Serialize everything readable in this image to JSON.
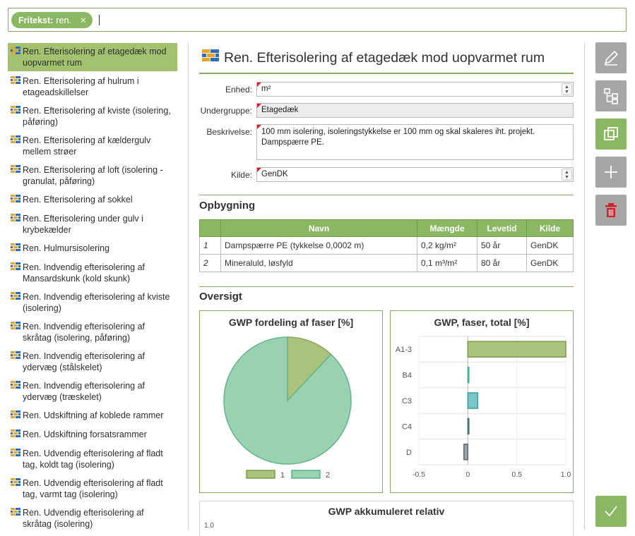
{
  "search": {
    "chip_label": "Fritekst:",
    "chip_value": "ren."
  },
  "list": {
    "items": [
      {
        "label": "Ren. Efterisolering af etagedæk mod uopvarmet rum",
        "selected": true
      },
      {
        "label": "Ren. Efterisolering af hulrum i etageadskillelser"
      },
      {
        "label": "Ren. Efterisolering af kviste (isolering, påføring)"
      },
      {
        "label": "Ren. Efterisolering af kældergulv mellem strøer"
      },
      {
        "label": "Ren. Efterisolering af loft (isolering - granulat, påføring)"
      },
      {
        "label": "Ren. Efterisolering af sokkel"
      },
      {
        "label": "Ren. Efterisolering under gulv i krybekælder"
      },
      {
        "label": "Ren. Hulmursisolering"
      },
      {
        "label": "Ren. Indvendig efterisolering af Mansardskunk  (kold skunk)"
      },
      {
        "label": "Ren. Indvendig efterisolering af kviste (isolering)"
      },
      {
        "label": "Ren. Indvendig efterisolering af skråtag (isolering, påføring)"
      },
      {
        "label": "Ren. Indvendig efterisolering af ydervæg (stålskelet)"
      },
      {
        "label": "Ren. Indvendig efterisolering af ydervæg (træskelet)"
      },
      {
        "label": "Ren. Udskiftning af koblede rammer"
      },
      {
        "label": "Ren. Udskiftning forsatsrammer"
      },
      {
        "label": "Ren. Udvendig efterisolering af fladt tag, koldt tag (isolering)"
      },
      {
        "label": "Ren. Udvendig efterisolering af fladt tag, varmt tag (isolering)"
      },
      {
        "label": "Ren. Udvendig efterisolering af skråtag (isolering)"
      }
    ]
  },
  "detail": {
    "title": "Ren. Efterisolering af etagedæk mod uopvarmet rum",
    "fields": {
      "enhed_label": "Enhed:",
      "enhed_value": "m²",
      "undergruppe_label": "Undergruppe:",
      "undergruppe_value": "Etagedæk",
      "beskrivelse_label": "Beskrivelse:",
      "beskrivelse_value": "100 mm isolering, isoleringstykkelse er 100 mm og skal skaleres iht. projekt. Dampspærre PE.",
      "kilde_label": "Kilde:",
      "kilde_value": "GenDK"
    },
    "opbygning": {
      "heading": "Opbygning",
      "columns": [
        "",
        "Navn",
        "Mængde",
        "Levetid",
        "Kilde"
      ],
      "rows": [
        [
          "1",
          "Dampspærre PE (tykkelse 0,0002 m)",
          "0,2 kg/m²",
          "50 år",
          "GenDK"
        ],
        [
          "2",
          "Mineraluld, løsfyld",
          "0,1 m³/m²",
          "80 år",
          "GenDK"
        ]
      ]
    },
    "oversigt_heading": "Oversigt",
    "accum_title": "GWP akkumuleret relativ",
    "accum_tick": "1.0"
  },
  "chart_data": [
    {
      "type": "pie",
      "title": "GWP fordeling af faser [%]",
      "categories": [
        "1",
        "2"
      ],
      "values": [
        12,
        88
      ],
      "colors": [
        "#a9c27c",
        "#99d1b1"
      ],
      "legend": "bottom"
    },
    {
      "type": "bar",
      "orientation": "horizontal",
      "title": "GWP, faser, total [%]",
      "categories": [
        "A1-3",
        "B4",
        "C3",
        "C4",
        "D"
      ],
      "values": [
        1.0,
        0.01,
        0.1,
        0.01,
        -0.04
      ],
      "colors": [
        "#a9c27c",
        "#99d1b1",
        "#7ac6c4",
        "#6aa3a3",
        "#9aa3a8"
      ],
      "xlim": [
        -0.5,
        1.0
      ],
      "xticks": [
        "-0.5",
        "0",
        "0.5",
        "1.0"
      ],
      "grid": true
    }
  ],
  "colors": {
    "accent": "#8ab862",
    "border": "#8aa865",
    "danger": "#d2232a"
  }
}
